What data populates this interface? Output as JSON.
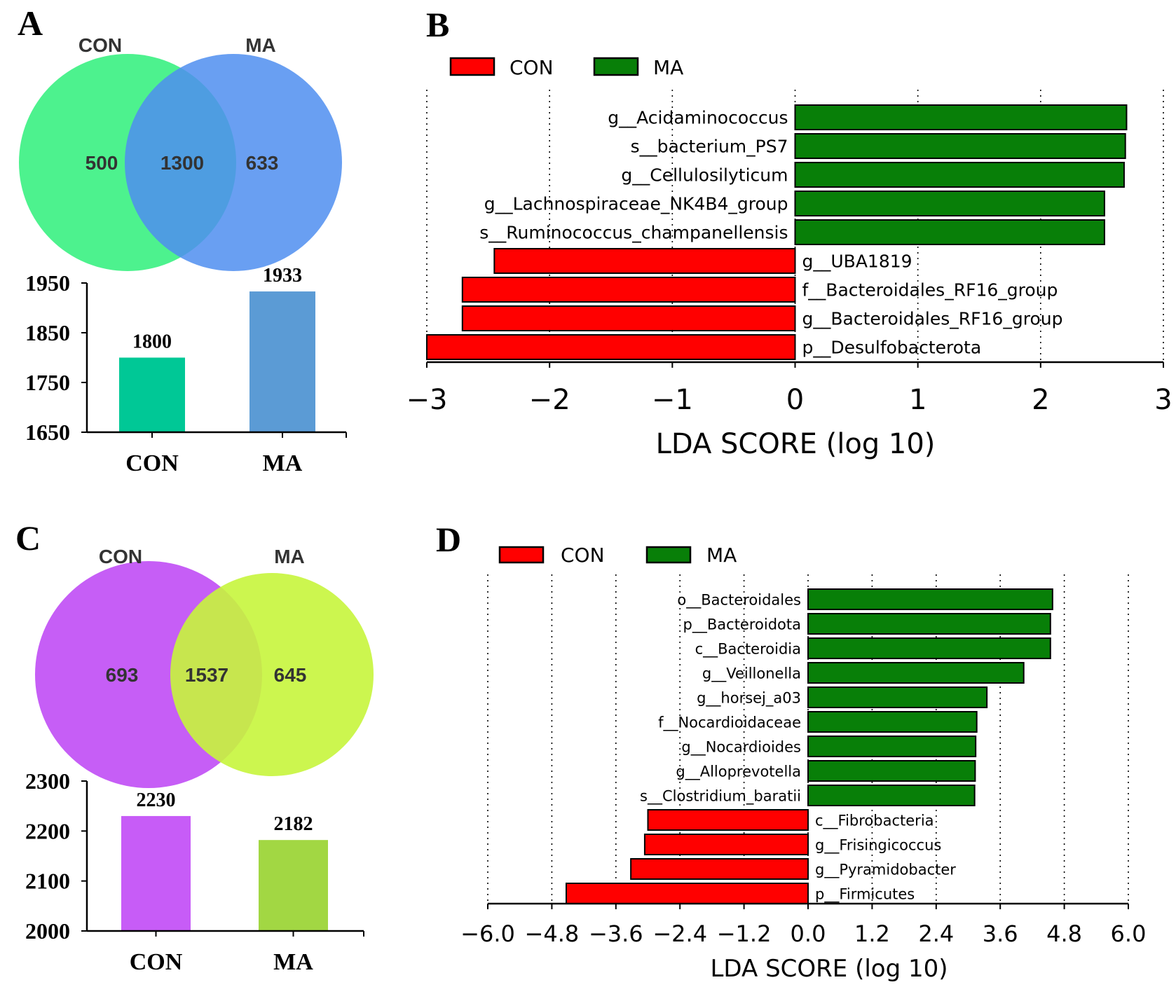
{
  "colors": {
    "con_red": "#ff0000",
    "ma_green": "#087f08",
    "venn_A_con": "#2ef07a",
    "venn_A_ma": "#4f8ef0",
    "venn_C_con": "#c04cf5",
    "venn_C_ma": "#c6f53c",
    "bar_A_con": "#00c896",
    "bar_A_ma": "#5b9bd5",
    "bar_C_con": "#c75cf7",
    "bar_C_ma": "#a2d743"
  },
  "chart_data": [
    {
      "panel": "A",
      "type": "venn",
      "sets": [
        "CON",
        "MA"
      ],
      "only_first": "500",
      "shared": "1300",
      "only_second": "633"
    },
    {
      "panel": "A",
      "type": "bar",
      "categories": [
        "CON",
        "MA"
      ],
      "values": [
        1800,
        1933
      ],
      "ylim": [
        1650,
        1950
      ],
      "yticks": [
        1650,
        1750,
        1850,
        1950
      ],
      "ytick_labels": [
        "1650",
        "1750",
        "1850",
        "1950"
      ],
      "value_labels": [
        "1800",
        "1933"
      ]
    },
    {
      "panel": "B",
      "type": "bar",
      "orientation": "horizontal",
      "legend": [
        "CON",
        "MA"
      ],
      "xlabel": "LDA SCORE (log 10)",
      "xlim": [
        -3,
        3
      ],
      "xticks": [
        -3,
        -2,
        -1,
        0,
        1,
        2,
        3
      ],
      "xtick_labels": [
        "−3",
        "−2",
        "−1",
        "0",
        "1",
        "2",
        "3"
      ],
      "features": [
        {
          "name": "g__Acidaminococcus",
          "group": "MA",
          "value": 2.7
        },
        {
          "name": "s__bacterium_PS7",
          "group": "MA",
          "value": 2.69
        },
        {
          "name": "g__Cellulosilyticum",
          "group": "MA",
          "value": 2.68
        },
        {
          "name": "g__Lachnospiraceae_NK4B4_group",
          "group": "MA",
          "value": 2.52
        },
        {
          "name": "s__Ruminococcus_champanellensis",
          "group": "MA",
          "value": 2.52
        },
        {
          "name": "g__UBA1819",
          "group": "CON",
          "value": -2.45
        },
        {
          "name": "f__Bacteroidales_RF16_group",
          "group": "CON",
          "value": -2.71
        },
        {
          "name": "g__Bacteroidales_RF16_group",
          "group": "CON",
          "value": -2.71
        },
        {
          "name": "p__Desulfobacterota",
          "group": "CON",
          "value": -3.0
        }
      ]
    },
    {
      "panel": "C",
      "type": "venn",
      "sets": [
        "CON",
        "MA"
      ],
      "only_first": "693",
      "shared": "1537",
      "only_second": "645"
    },
    {
      "panel": "C",
      "type": "bar",
      "categories": [
        "CON",
        "MA"
      ],
      "values": [
        2230,
        2182
      ],
      "ylim": [
        2000,
        2300
      ],
      "yticks": [
        2000,
        2100,
        2200,
        2300
      ],
      "ytick_labels": [
        "2000",
        "2100",
        "2200",
        "2300"
      ],
      "value_labels": [
        "2230",
        "2182"
      ]
    },
    {
      "panel": "D",
      "type": "bar",
      "orientation": "horizontal",
      "legend": [
        "CON",
        "MA"
      ],
      "xlabel": "LDA SCORE (log 10)",
      "xlim": [
        -6.0,
        6.0
      ],
      "xticks": [
        -6.0,
        -4.8,
        -3.6,
        -2.4,
        -1.2,
        0.0,
        1.2,
        2.4,
        3.6,
        4.8,
        6.0
      ],
      "xtick_labels": [
        "−6.0",
        "−4.8",
        "−3.6",
        "−2.4",
        "−1.2",
        "0.0",
        "1.2",
        "2.4",
        "3.6",
        "4.8",
        "6.0"
      ],
      "features": [
        {
          "name": "o__Bacteroidales",
          "group": "MA",
          "value": 4.58
        },
        {
          "name": "p__Bacteroidota",
          "group": "MA",
          "value": 4.54
        },
        {
          "name": "c__Bacteroidia",
          "group": "MA",
          "value": 4.54
        },
        {
          "name": "g__Veillonella",
          "group": "MA",
          "value": 4.04
        },
        {
          "name": "g__horsej_a03",
          "group": "MA",
          "value": 3.35
        },
        {
          "name": "f__Nocardioidaceae",
          "group": "MA",
          "value": 3.16
        },
        {
          "name": "g__Nocardioides",
          "group": "MA",
          "value": 3.14
        },
        {
          "name": "g__Alloprevotella",
          "group": "MA",
          "value": 3.13
        },
        {
          "name": "s__Clostridium_baratii",
          "group": "MA",
          "value": 3.12
        },
        {
          "name": "c__Fibrobacteria",
          "group": "CON",
          "value": -3.0
        },
        {
          "name": "g__Frisingicoccus",
          "group": "CON",
          "value": -3.06
        },
        {
          "name": "g__Pyramidobacter",
          "group": "CON",
          "value": -3.32
        },
        {
          "name": "p__Firmicutes",
          "group": "CON",
          "value": -4.53
        }
      ]
    }
  ]
}
